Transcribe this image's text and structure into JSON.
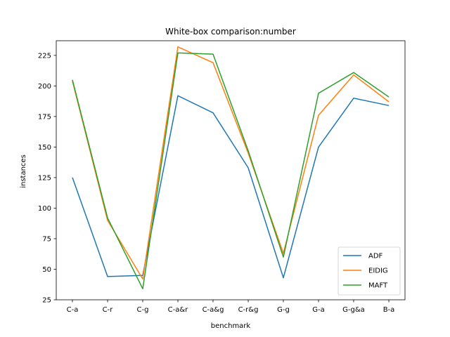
{
  "chart_data": {
    "type": "line",
    "title": "White-box comparison:number",
    "xlabel": "benchmark",
    "ylabel": "instances",
    "categories": [
      "C-a",
      "C-r",
      "C-g",
      "C-a&r",
      "C-a&g",
      "C-r&g",
      "G-g",
      "G-a",
      "G-g&a",
      "B-a"
    ],
    "ylim": [
      25,
      237
    ],
    "yticks": [
      25,
      50,
      75,
      100,
      125,
      150,
      175,
      200,
      225
    ],
    "grid": false,
    "legend_position": "lower right",
    "series": [
      {
        "name": "ADF",
        "color": "#1f77b4",
        "values": [
          125,
          44,
          45,
          192,
          178,
          133,
          43,
          150,
          190,
          184
        ]
      },
      {
        "name": "EIDIG",
        "color": "#ff7f0e",
        "values": [
          204,
          90,
          42,
          232,
          219,
          145,
          63,
          176,
          209,
          187
        ]
      },
      {
        "name": "MAFT",
        "color": "#2ca02c",
        "values": [
          205,
          92,
          34,
          227,
          226,
          147,
          60,
          194,
          211,
          191
        ]
      }
    ]
  }
}
